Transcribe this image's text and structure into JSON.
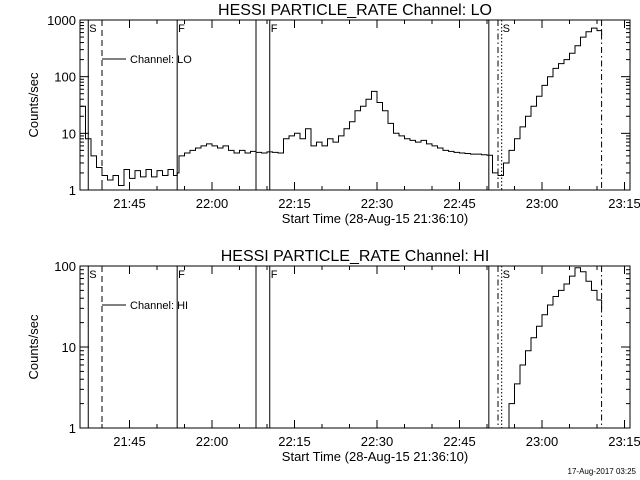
{
  "footer": {
    "timestamp": "17-Aug-2017 03:25"
  },
  "chart_data": [
    {
      "type": "line",
      "title": "HESSI PARTICLE_RATE Channel: LO",
      "xlabel": "Start Time (28-Aug-15 21:36:10)",
      "ylabel": "Counts/sec",
      "yscale": "log",
      "xlim": [
        "21:36",
        "23:16"
      ],
      "ylim": [
        1,
        1000
      ],
      "xticks": [
        "21:45",
        "22:00",
        "22:15",
        "22:30",
        "22:45",
        "23:00",
        "23:15"
      ],
      "yticks": [
        "1",
        "10",
        "100",
        "1000"
      ],
      "legend": {
        "position": "top-left",
        "label": "Channel: LO"
      },
      "vertical_markers": [
        {
          "time": "21:37:30",
          "style": "solid",
          "label": "S"
        },
        {
          "time": "21:40",
          "style": "dashed",
          "label": ""
        },
        {
          "time": "21:53:40",
          "style": "solid",
          "label": "F"
        },
        {
          "time": "22:08",
          "style": "solid",
          "label": ""
        },
        {
          "time": "22:10:30",
          "style": "solid",
          "label": "F"
        },
        {
          "time": "22:50:20",
          "style": "solid",
          "label": ""
        },
        {
          "time": "22:52",
          "style": "dashdot",
          "label": ""
        },
        {
          "time": "22:52:40",
          "style": "dotted",
          "label": "S"
        },
        {
          "time": "23:10:50",
          "style": "dashdot",
          "label": ""
        }
      ],
      "series": [
        {
          "name": "Channel: LO",
          "x": [
            "21:36:10",
            "21:37",
            "21:38",
            "21:39",
            "21:40",
            "21:41",
            "21:42",
            "21:43",
            "21:44",
            "21:45",
            "21:46",
            "21:47",
            "21:48",
            "21:49",
            "21:50",
            "21:51",
            "21:52",
            "21:53",
            "21:53:40",
            "21:54",
            "21:55",
            "21:56",
            "21:57",
            "21:58",
            "21:59",
            "22:00",
            "22:01",
            "22:02",
            "22:03",
            "22:04",
            "22:05",
            "22:06",
            "22:07",
            "22:08",
            "22:09",
            "22:10",
            "22:11",
            "22:12",
            "22:13",
            "22:14",
            "22:15",
            "22:16",
            "22:17",
            "22:18",
            "22:19",
            "22:20",
            "22:21",
            "22:22",
            "22:23",
            "22:24",
            "22:25",
            "22:26",
            "22:27",
            "22:28",
            "22:29",
            "22:30",
            "22:31",
            "22:32",
            "22:33",
            "22:34",
            "22:35",
            "22:36",
            "22:37",
            "22:38",
            "22:39",
            "22:40",
            "22:41",
            "22:42",
            "22:43",
            "22:44",
            "22:45",
            "22:46",
            "22:47",
            "22:48",
            "22:49",
            "22:50",
            "22:51",
            "22:52",
            "22:53",
            "22:54",
            "22:55",
            "22:56",
            "22:57",
            "22:58",
            "22:59",
            "23:00",
            "23:01",
            "23:02",
            "23:03",
            "23:04",
            "23:05",
            "23:06",
            "23:07",
            "23:08",
            "23:09",
            "23:10",
            "23:10:50"
          ],
          "y": [
            30,
            8,
            4,
            2.5,
            1.8,
            1.5,
            1.8,
            1.2,
            2.3,
            1.6,
            2.2,
            1.7,
            2.3,
            1.7,
            2.2,
            1.8,
            2.3,
            1.8,
            2,
            4,
            4.5,
            5,
            5.5,
            6,
            6.5,
            6,
            5.5,
            6,
            5,
            4.5,
            5,
            4.5,
            4.8,
            4.6,
            4.5,
            4.7,
            4.6,
            4.5,
            8,
            9,
            10,
            8,
            12,
            6,
            7,
            6,
            8,
            7,
            9,
            12,
            16,
            25,
            30,
            40,
            55,
            35,
            25,
            15,
            10,
            9,
            8,
            7.5,
            7,
            7.5,
            6.5,
            6,
            5.5,
            5,
            4.8,
            4.6,
            4.5,
            4.4,
            4.3,
            4.3,
            4.2,
            4.1,
            2,
            1.8,
            3,
            5,
            8,
            13,
            20,
            30,
            45,
            70,
            100,
            140,
            170,
            200,
            260,
            350,
            500,
            620,
            720,
            650,
            550
          ]
        }
      ]
    },
    {
      "type": "line",
      "title": "HESSI PARTICLE_RATE Channel: HI",
      "xlabel": "Start Time (28-Aug-15 21:36:10)",
      "ylabel": "Counts/sec",
      "yscale": "log",
      "xlim": [
        "21:36",
        "23:16"
      ],
      "ylim": [
        1,
        100
      ],
      "xticks": [
        "21:45",
        "22:00",
        "22:15",
        "22:30",
        "22:45",
        "23:00",
        "23:15"
      ],
      "yticks": [
        "1",
        "10",
        "100"
      ],
      "legend": {
        "position": "top-left",
        "label": "Channel: HI"
      },
      "vertical_markers": [
        {
          "time": "21:37:30",
          "style": "solid",
          "label": "S"
        },
        {
          "time": "21:40",
          "style": "dashed",
          "label": ""
        },
        {
          "time": "21:53:40",
          "style": "solid",
          "label": "F"
        },
        {
          "time": "22:08",
          "style": "solid",
          "label": ""
        },
        {
          "time": "22:10:30",
          "style": "solid",
          "label": "F"
        },
        {
          "time": "22:50:20",
          "style": "solid",
          "label": ""
        },
        {
          "time": "22:52",
          "style": "dashdot",
          "label": ""
        },
        {
          "time": "22:52:40",
          "style": "dotted",
          "label": "S"
        },
        {
          "time": "23:10:50",
          "style": "dashdot",
          "label": ""
        }
      ],
      "series": [
        {
          "name": "Channel: HI",
          "x": [
            "22:53",
            "22:54",
            "22:55",
            "22:56",
            "22:57",
            "22:58",
            "22:59",
            "23:00",
            "23:01",
            "23:02",
            "23:03",
            "23:04",
            "23:05",
            "23:06",
            "23:07",
            "23:08",
            "23:09",
            "23:10",
            "23:10:50"
          ],
          "y": [
            1,
            2,
            3.5,
            6,
            9,
            13,
            18,
            25,
            33,
            42,
            50,
            60,
            75,
            95,
            85,
            65,
            50,
            38,
            30
          ]
        }
      ]
    }
  ]
}
